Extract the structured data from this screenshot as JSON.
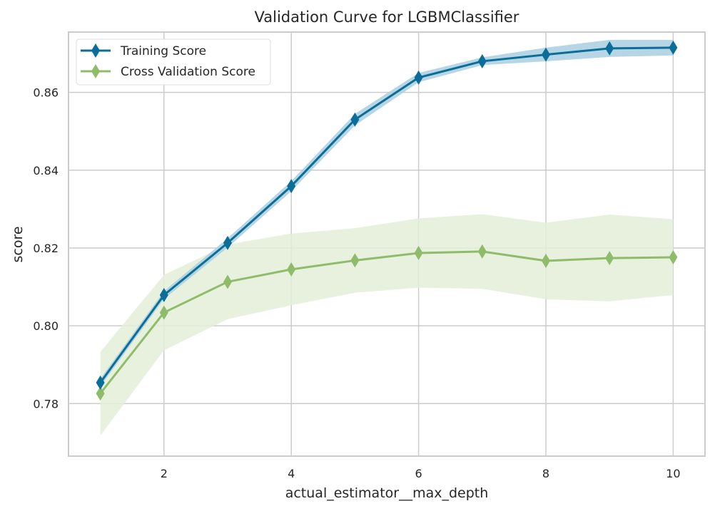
{
  "chart_data": {
    "type": "line",
    "title": "Validation Curve for LGBMClassifier",
    "xlabel": "actual_estimator__max_depth",
    "ylabel": "score",
    "x": [
      1,
      2,
      3,
      4,
      5,
      6,
      7,
      8,
      9,
      10
    ],
    "xlim": [
      0.5,
      10.5
    ],
    "ylim": [
      0.7665,
      0.8755
    ],
    "xticks": [
      2,
      4,
      6,
      8,
      10
    ],
    "yticks": [
      0.78,
      0.8,
      0.82,
      0.84,
      0.86
    ],
    "xtick_labels": [
      "2",
      "4",
      "6",
      "8",
      "10"
    ],
    "ytick_labels": [
      "0.78",
      "0.80",
      "0.82",
      "0.84",
      "0.86"
    ],
    "grid": true,
    "legend_position": "top-left",
    "series": [
      {
        "name": "Training Score",
        "color": "#0b6e99",
        "band_color": "#a9cfe0",
        "marker": "diamond",
        "values": [
          0.7854,
          0.8079,
          0.8213,
          0.8359,
          0.853,
          0.8638,
          0.868,
          0.8697,
          0.8713,
          0.8715
        ],
        "upper": [
          0.7864,
          0.8089,
          0.8225,
          0.8372,
          0.8545,
          0.865,
          0.869,
          0.8715,
          0.8735,
          0.8735
        ],
        "lower": [
          0.7844,
          0.8069,
          0.8201,
          0.8346,
          0.8515,
          0.8626,
          0.867,
          0.868,
          0.8691,
          0.8695
        ]
      },
      {
        "name": "Cross Validation Score",
        "color": "#8fbc6a",
        "band_color": "#e3eed8",
        "marker": "diamond",
        "values": [
          0.7826,
          0.8034,
          0.8113,
          0.8145,
          0.8168,
          0.8187,
          0.8191,
          0.8167,
          0.8174,
          0.8176
        ],
        "upper": [
          0.7933,
          0.8131,
          0.8209,
          0.8237,
          0.8251,
          0.8276,
          0.8287,
          0.8265,
          0.8286,
          0.8274
        ],
        "lower": [
          0.7718,
          0.7937,
          0.8017,
          0.8053,
          0.8085,
          0.8098,
          0.8095,
          0.8068,
          0.8063,
          0.8079
        ]
      }
    ]
  }
}
